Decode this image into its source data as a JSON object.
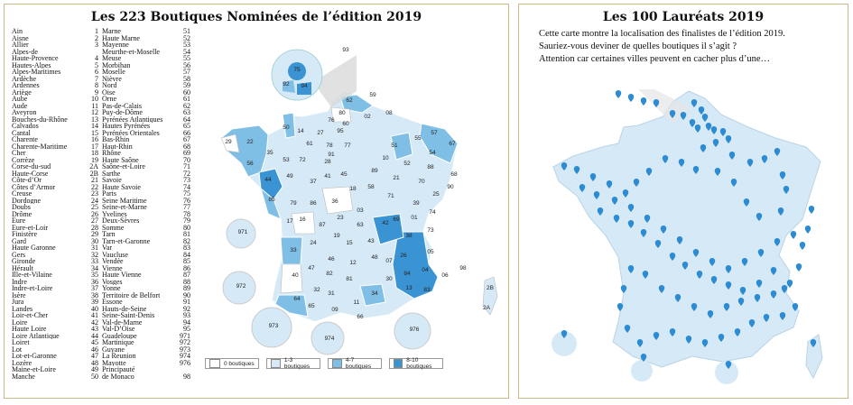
{
  "left_panel": {
    "title": "Les 223 Boutiques Nominées de l’édition 2019",
    "departments_col1": [
      [
        "Ain",
        "1"
      ],
      [
        "Aisne",
        "2"
      ],
      [
        "Allier",
        "3"
      ],
      [
        "Alpes-de",
        ""
      ],
      [
        "Haute-Provence",
        "4"
      ],
      [
        "Hautes-Alpes",
        "5"
      ],
      [
        "Alpes-Maritimes",
        "6"
      ],
      [
        "Ardèche",
        "7"
      ],
      [
        "Ardennes",
        "8"
      ],
      [
        "Ariège",
        "9"
      ],
      [
        "Aube",
        "10"
      ],
      [
        "Aude",
        "11"
      ],
      [
        "Aveyron",
        "12"
      ],
      [
        "Bouches-du-Rhône",
        "13"
      ],
      [
        "Calvados",
        "14"
      ],
      [
        "Cantal",
        "15"
      ],
      [
        "Charente",
        "16"
      ],
      [
        "Charente-Maritime",
        "17"
      ],
      [
        "Cher",
        "18"
      ],
      [
        "Corrèze",
        "19"
      ],
      [
        "Corse-du-sud",
        "2A"
      ],
      [
        "Haute-Corse",
        "2B"
      ],
      [
        "Côte-d’Or",
        "21"
      ],
      [
        "Côtes d’Armor",
        "22"
      ],
      [
        "Creuse",
        "23"
      ],
      [
        "Dordogne",
        "24"
      ],
      [
        "Doubs",
        "25"
      ],
      [
        "Drôme",
        "26"
      ],
      [
        "Eure",
        "27"
      ],
      [
        "Eure-et-Loir",
        "28"
      ],
      [
        "Finistère",
        "29"
      ],
      [
        "Gard",
        "30"
      ],
      [
        "Haute Garonne",
        "31"
      ],
      [
        "Gers",
        "32"
      ],
      [
        "Gironde",
        "33"
      ],
      [
        "Hérault",
        "34"
      ],
      [
        "Ille-et-Vilaine",
        "35"
      ],
      [
        "Indre",
        "36"
      ],
      [
        "Indre-et-Loire",
        "37"
      ],
      [
        "Isère",
        "38"
      ],
      [
        "Jura",
        "39"
      ],
      [
        "Landes",
        "40"
      ],
      [
        "Loir-et-Cher",
        "41"
      ],
      [
        "Loire",
        "42"
      ],
      [
        "Haute Loire",
        "43"
      ],
      [
        "Loire Atlantique",
        "44"
      ],
      [
        "Loiret",
        "45"
      ],
      [
        "Lot",
        "46"
      ],
      [
        "Lot-et-Garonne",
        "47"
      ],
      [
        "Lozère",
        "48"
      ],
      [
        "Maine-et-Loire",
        "49"
      ],
      [
        "Manche",
        "50"
      ]
    ],
    "departments_col2": [
      [
        "Marne",
        "51"
      ],
      [
        "Haute Marne",
        "52"
      ],
      [
        "Mayenne",
        "53"
      ],
      [
        "Meurthe-et-Moselle",
        "54"
      ],
      [
        "Meuse",
        "55"
      ],
      [
        "Morbihan",
        "56"
      ],
      [
        "Moselle",
        "57"
      ],
      [
        "Nièvre",
        "58"
      ],
      [
        "Nord",
        "59"
      ],
      [
        "Oise",
        "60"
      ],
      [
        "Orne",
        "61"
      ],
      [
        "Pas-de-Calais",
        "62"
      ],
      [
        "Puy-de-Dôme",
        "63"
      ],
      [
        "Pyrénées Atlantiques",
        "64"
      ],
      [
        "Hautes Pyrénées",
        "65"
      ],
      [
        "Pyrénées Orientales",
        "66"
      ],
      [
        "Bas-Rhin",
        "67"
      ],
      [
        "Haut-Rhin",
        "68"
      ],
      [
        "Rhône",
        "69"
      ],
      [
        "Haute Saône",
        "70"
      ],
      [
        "Saône-et-Loire",
        "71"
      ],
      [
        "Sarthe",
        "72"
      ],
      [
        "Savoie",
        "73"
      ],
      [
        "Haute Savoie",
        "74"
      ],
      [
        "Paris",
        "75"
      ],
      [
        "Seine Maritime",
        "76"
      ],
      [
        "Seine-et-Marne",
        "77"
      ],
      [
        "Yvelines",
        "78"
      ],
      [
        "Deux-Sèvres",
        "79"
      ],
      [
        "Somme",
        "80"
      ],
      [
        "Tarn",
        "81"
      ],
      [
        "Tarn-et-Garonne",
        "82"
      ],
      [
        "Var",
        "83"
      ],
      [
        "Vaucluse",
        "84"
      ],
      [
        "Vendée",
        "85"
      ],
      [
        "Vienne",
        "86"
      ],
      [
        "Haute Vienne",
        "87"
      ],
      [
        "Vosges",
        "88"
      ],
      [
        "Yonne",
        "89"
      ],
      [
        "Territoire de Belfort",
        "90"
      ],
      [
        "Essone",
        "91"
      ],
      [
        "Hauts-de-Seine",
        "92"
      ],
      [
        "Seine-Saint-Denis",
        "93"
      ],
      [
        "Val-de-Marne",
        "94"
      ],
      [
        "Val-D’Oise",
        "95"
      ],
      [
        "Guadeloupe",
        "971"
      ],
      [
        "Martinique",
        "972"
      ],
      [
        "Guyane",
        "973"
      ],
      [
        "La Reunion",
        "974"
      ],
      [
        "Mayotte",
        "976"
      ],
      [
        "Principauté",
        ""
      ],
      [
        "de Monaco",
        "98"
      ]
    ],
    "legend": [
      {
        "label": "0 boutiques",
        "color": "#ffffff"
      },
      {
        "label": "1-3 boutiques",
        "color": "#d6e9f6"
      },
      {
        "label": "4-7 boutiques",
        "color": "#7fbfe6"
      },
      {
        "label": "8-10 boutiques",
        "color": "#3a93d3"
      }
    ],
    "map_labels": [
      "62",
      "59",
      "80",
      "76",
      "02",
      "08",
      "60",
      "95",
      "14",
      "50",
      "93",
      "92",
      "94",
      "75",
      "61",
      "27",
      "78",
      "91",
      "77",
      "51",
      "55",
      "57",
      "67",
      "54",
      "88",
      "52",
      "10",
      "89",
      "28",
      "45",
      "21",
      "70",
      "68",
      "25",
      "90",
      "72",
      "53",
      "35",
      "22",
      "29",
      "56",
      "44",
      "49",
      "37",
      "41",
      "18",
      "58",
      "71",
      "39",
      "85",
      "79",
      "86",
      "36",
      "03",
      "23",
      "87",
      "16",
      "17",
      "24",
      "19",
      "63",
      "42",
      "69",
      "01",
      "74",
      "73",
      "38",
      "43",
      "15",
      "46",
      "12",
      "48",
      "07",
      "26",
      "05",
      "84",
      "04",
      "06",
      "33",
      "47",
      "40",
      "82",
      "81",
      "30",
      "13",
      "83",
      "64",
      "65",
      "32",
      "31",
      "09",
      "11",
      "34",
      "66",
      "2B",
      "2A",
      "98",
      "971",
      "972",
      "973",
      "974",
      "976"
    ]
  },
  "right_panel": {
    "title": "Les 100 Lauréats 2019",
    "desc_line1": "Cette carte montre la localisation des finalistes de l’édition 2019.",
    "desc_line2": "Sauriez-vous deviner de quelles boutiques il s’agit ?",
    "desc_line3": "Attention car certaines villes peuvent en cacher plus d’une…"
  },
  "colors": {
    "border": "#c9b98a",
    "light": "#d6e9f6",
    "mid": "#7fbfe6",
    "dark": "#3a93d3",
    "pin": "#2c8bd1"
  }
}
